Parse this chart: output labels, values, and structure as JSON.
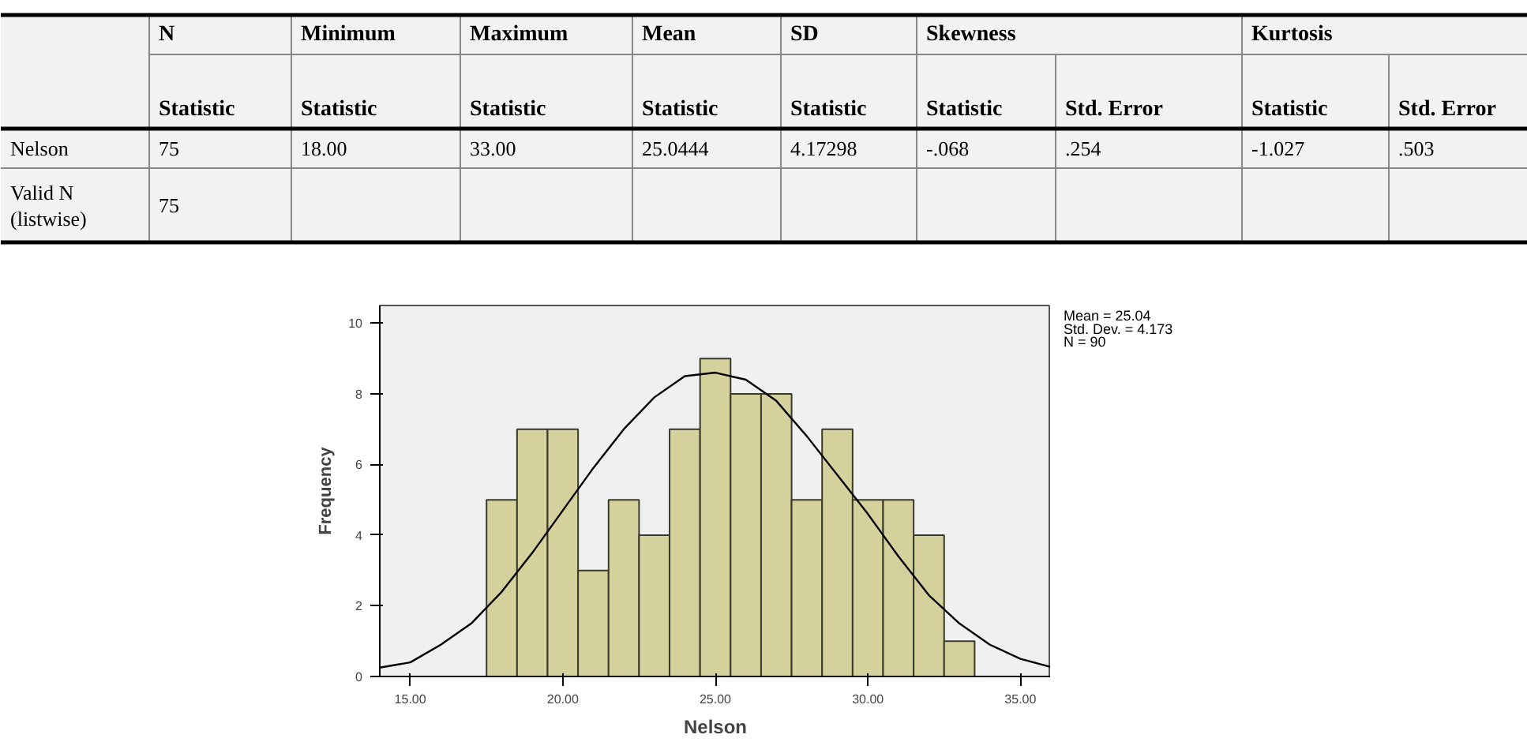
{
  "chart_data": [
    {
      "type": "other",
      "annotations": [
        "N",
        "Minimum",
        "Maximum",
        "Mean",
        "SD",
        "Skewness",
        "Kurtosis"
      ],
      "categories": [
        "Statistic",
        "Statistic",
        "Statistic",
        "Statistic",
        "Statistic",
        "Statistic",
        "Std. Error",
        "Statistic",
        "Std. Error"
      ],
      "y_categories": [
        "Nelson",
        "Valid N (listwise)"
      ],
      "cell_labels": [
        [
          "75",
          "18.00",
          "33.00",
          "25.0444",
          "4.17298",
          "-.068",
          ".254",
          "-1.027",
          ".503"
        ],
        [
          "75",
          null,
          null,
          null,
          null,
          null,
          null,
          null,
          null
        ]
      ]
    },
    {
      "type": "histogram",
      "bins": [
        17.5,
        18.5,
        19.5,
        20.5,
        21.5,
        22.5,
        23.5,
        24.5,
        25.5,
        26.5,
        27.5,
        28.5,
        29.5,
        30.5,
        31.5,
        32.5,
        33.5
      ],
      "values": [
        5,
        7,
        7,
        3,
        5,
        4,
        7,
        9,
        8,
        8,
        5,
        7,
        5,
        5,
        4,
        1
      ],
      "color": "#d5d19c",
      "series": [
        {
          "type": "line",
          "color": "#000000",
          "x": [
            14,
            15,
            16,
            17,
            18,
            19,
            20,
            21,
            22,
            23,
            24,
            25,
            26,
            27,
            28,
            29,
            30,
            31,
            32,
            33,
            34,
            35,
            36
          ],
          "values": [
            0.25,
            0.4,
            0.9,
            1.5,
            2.4,
            3.5,
            4.7,
            5.9,
            7.0,
            7.9,
            8.5,
            8.6,
            8.4,
            7.8,
            6.8,
            5.7,
            4.6,
            3.4,
            2.3,
            1.5,
            0.9,
            0.5,
            0.27
          ]
        }
      ],
      "xlim": [
        14,
        36
      ],
      "ylim": [
        0,
        10.5
      ],
      "xticks": [
        {
          "value": 15,
          "label": "15.00"
        },
        {
          "value": 20,
          "label": "20.00"
        },
        {
          "value": 25,
          "label": "25.00"
        },
        {
          "value": 30,
          "label": "30.00"
        },
        {
          "value": 35,
          "label": "35.00"
        }
      ],
      "yticks": [
        0,
        2,
        4,
        6,
        8,
        10
      ],
      "xlabel": "Nelson",
      "ylabel": "Frequency",
      "annotations": [
        "Mean = 25.04",
        "Std. Dev. = 4.173",
        "N = 90"
      ],
      "grid": false,
      "marker": "none"
    }
  ]
}
